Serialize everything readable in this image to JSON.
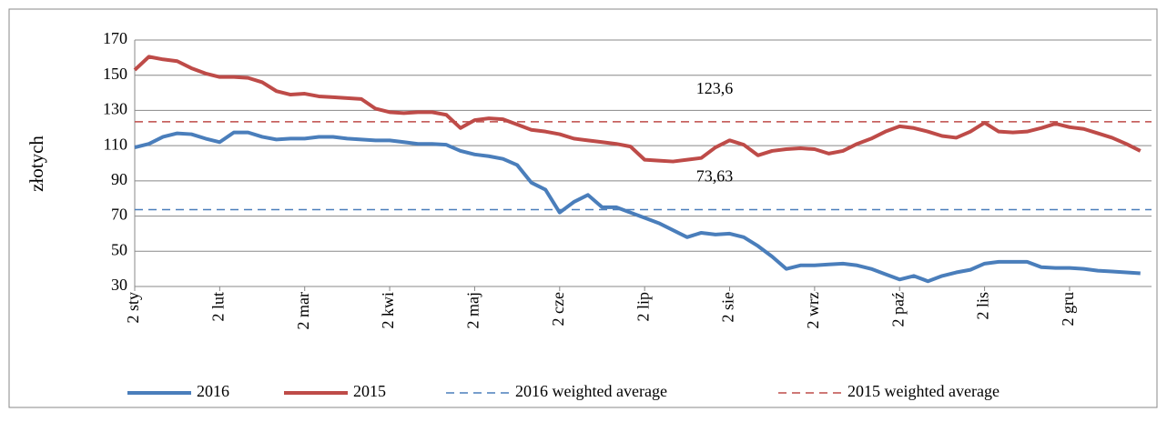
{
  "chart_data": {
    "type": "line",
    "ylabel": "złotych",
    "categories": [
      "2 sty",
      null,
      null,
      null,
      null,
      null,
      "2 lut",
      null,
      null,
      null,
      null,
      null,
      "2 mar",
      null,
      null,
      null,
      null,
      null,
      "2 kwi",
      null,
      null,
      null,
      null,
      null,
      "2 maj",
      null,
      null,
      null,
      null,
      null,
      "2 cze",
      null,
      null,
      null,
      null,
      null,
      "2 lip",
      null,
      null,
      null,
      null,
      null,
      "2 sie",
      null,
      null,
      null,
      null,
      null,
      "2 wrz",
      null,
      null,
      null,
      null,
      null,
      "2 paź",
      null,
      null,
      null,
      null,
      null,
      "2 lis",
      null,
      null,
      null,
      null,
      null,
      "2 gru",
      null,
      null,
      null,
      null,
      null
    ],
    "series": [
      {
        "name": "2016",
        "color": "#4a7ebb",
        "values": [
          109,
          111,
          115,
          117,
          116.5,
          114,
          112,
          117.5,
          117.5,
          115,
          113.5,
          114,
          114,
          115,
          115,
          114,
          113.5,
          113,
          113,
          112,
          111,
          111,
          110.5,
          107,
          105,
          104,
          102.5,
          99,
          89,
          85,
          72,
          78,
          82,
          75,
          75,
          72,
          69,
          66,
          62,
          58,
          60.5,
          59.5,
          60,
          58,
          53,
          47,
          40,
          42,
          42,
          42.5,
          43,
          42,
          40,
          37,
          34,
          36,
          33,
          36,
          38,
          39.5,
          43,
          44,
          44,
          44,
          41,
          40.5,
          40.5,
          40,
          39,
          38.5,
          38,
          37.5
        ]
      },
      {
        "name": "2015",
        "color": "#be4b48",
        "values": [
          153,
          160.5,
          159,
          158,
          154,
          151,
          149,
          149,
          148.5,
          146,
          141,
          139,
          139.5,
          138,
          137.5,
          137,
          136.5,
          131,
          129,
          128.5,
          129,
          129,
          127.5,
          120,
          124.5,
          125.5,
          125,
          122,
          119,
          118,
          116.5,
          114,
          113,
          112,
          111,
          109.5,
          102,
          101.5,
          101,
          102,
          103,
          109,
          113,
          110.5,
          104.5,
          107,
          108,
          108.5,
          108,
          105.5,
          107,
          111,
          114,
          118,
          121,
          120,
          118,
          115.5,
          114.5,
          118,
          123,
          118,
          117.5,
          118,
          120,
          122.5,
          120.5,
          119.5,
          117,
          114.5,
          111,
          107
        ]
      }
    ],
    "hlines": [
      {
        "name": "2016 weighted average",
        "color": "#4a7ebb",
        "value": 73.63,
        "label": "73,63"
      },
      {
        "name": "2015 weighted average",
        "color": "#be4b48",
        "value": 123.6,
        "label": "123,6"
      }
    ],
    "ylim": [
      30,
      170
    ],
    "yticks": [
      30,
      50,
      70,
      90,
      110,
      130,
      150,
      170
    ],
    "grid": true,
    "legend": "bottom"
  }
}
